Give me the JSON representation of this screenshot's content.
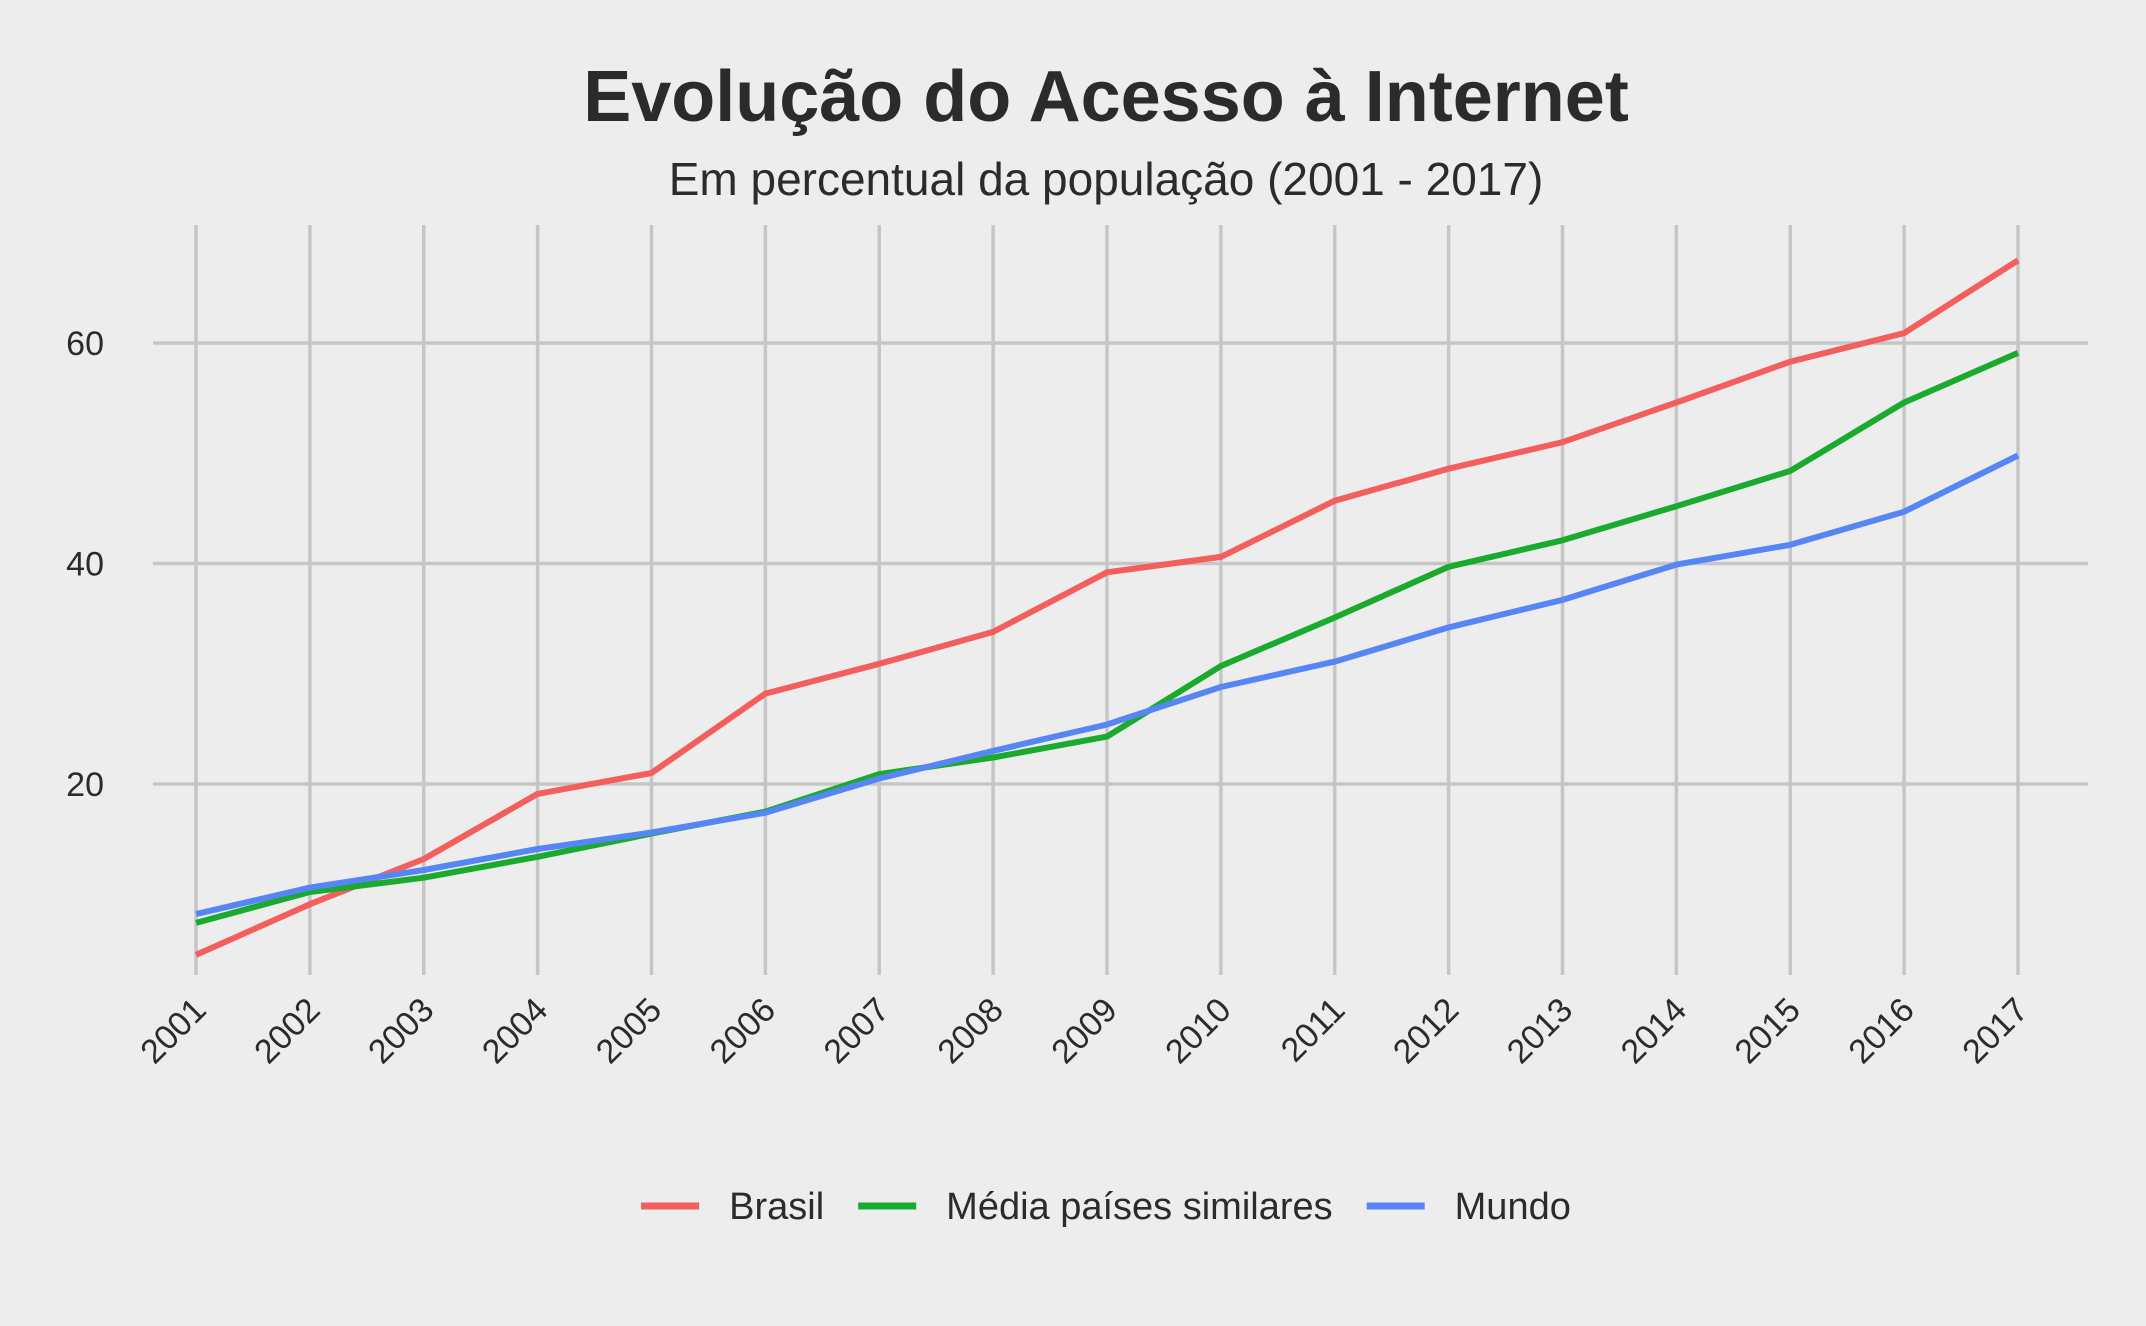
{
  "chart_data": {
    "type": "line",
    "title": "Evolução do Acesso à Internet",
    "subtitle": "Em percentual da população (2001 - 2017)",
    "xlabel": "",
    "ylabel": "",
    "x": [
      "2001",
      "2002",
      "2003",
      "2004",
      "2005",
      "2006",
      "2007",
      "2008",
      "2009",
      "2010",
      "2011",
      "2012",
      "2013",
      "2014",
      "2015",
      "2016",
      "2017"
    ],
    "y_ticks": [
      20,
      40,
      60
    ],
    "ylim": [
      3,
      70
    ],
    "grid": true,
    "legend_position": "bottom",
    "series": [
      {
        "name": "Brasil",
        "color": "#f25f5c",
        "values": [
          4.5,
          9.1,
          13.2,
          19.1,
          21.0,
          28.2,
          30.9,
          33.8,
          39.2,
          40.6,
          45.7,
          48.6,
          51.0,
          54.6,
          58.3,
          60.9,
          67.5
        ]
      },
      {
        "name": "Média países similares",
        "color": "#1aab2e",
        "values": [
          7.4,
          10.2,
          11.5,
          13.4,
          15.5,
          17.5,
          20.9,
          22.4,
          24.3,
          30.7,
          35.1,
          39.7,
          42.1,
          45.2,
          48.4,
          54.6,
          59.1
        ]
      },
      {
        "name": "Mundo",
        "color": "#5686f5",
        "values": [
          8.2,
          10.6,
          12.2,
          14.1,
          15.6,
          17.4,
          20.5,
          23.0,
          25.4,
          28.8,
          31.1,
          34.2,
          36.7,
          39.9,
          41.7,
          44.7,
          49.8
        ]
      }
    ]
  }
}
